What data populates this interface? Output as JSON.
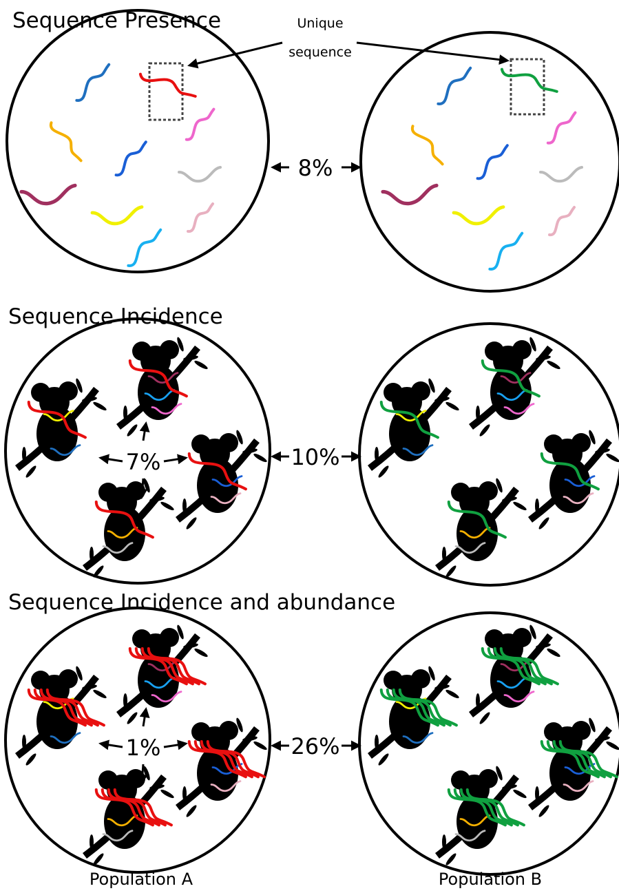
{
  "annotation": {
    "lines": [
      "Unique",
      "sequence"
    ]
  },
  "panels": [
    {
      "title": "Sequence Presence",
      "between": "8%"
    },
    {
      "title": "Sequence Incidence",
      "within": "7%",
      "between": "10%"
    },
    {
      "title": "Sequence Incidence and abundance",
      "within": "1%",
      "between": "26%"
    }
  ],
  "footer": {
    "labels": [
      "Population A",
      "Population B"
    ]
  }
}
